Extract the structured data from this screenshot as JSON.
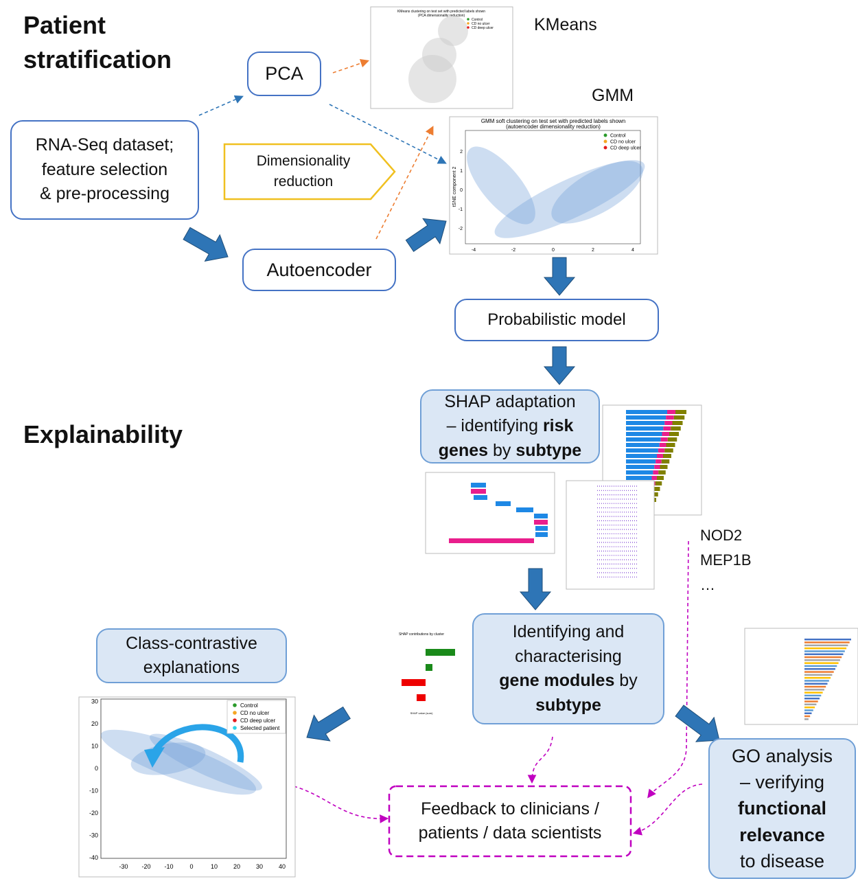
{
  "headings": {
    "stratification": [
      "Patient",
      "stratification"
    ],
    "explainability": "Explainability"
  },
  "nodes": [
    {
      "lines": [
        [
          {
            "t": "PCA"
          }
        ]
      ]
    },
    {
      "lines": [
        [
          {
            "t": "RNA-Seq dataset;"
          }
        ],
        [
          {
            "t": "feature selection"
          }
        ],
        [
          {
            "t": "& pre-processing"
          }
        ]
      ]
    },
    {
      "lines": [
        [
          {
            "t": "Dimensionality"
          }
        ],
        [
          {
            "t": "reduction"
          }
        ]
      ]
    },
    {
      "lines": [
        [
          {
            "t": "Autoencoder"
          }
        ]
      ]
    },
    {
      "lines": [
        [
          {
            "t": "Probabilistic model"
          }
        ]
      ]
    },
    {
      "lines": [
        [
          {
            "t": "SHAP adaptation"
          }
        ],
        [
          {
            "t": "– identifying "
          },
          {
            "t": "risk",
            "b": true
          }
        ],
        [
          {
            "t": "genes",
            "b": true
          },
          {
            "t": " by "
          },
          {
            "t": "subtype",
            "b": true
          }
        ]
      ]
    },
    {
      "lines": [
        [
          {
            "t": "Identifying and"
          }
        ],
        [
          {
            "t": "characterising"
          }
        ],
        [
          {
            "t": "gene modules",
            "b": true
          },
          {
            "t": " by"
          }
        ],
        [
          {
            "t": "subtype",
            "b": true
          }
        ]
      ]
    },
    {
      "lines": [
        [
          {
            "t": "Class-contrastive"
          }
        ],
        [
          {
            "t": "explanations"
          }
        ]
      ]
    },
    {
      "lines": [
        [
          {
            "t": "GO analysis"
          }
        ],
        [
          {
            "t": "– verifying"
          }
        ],
        [
          {
            "t": "functional",
            "b": true
          }
        ],
        [
          {
            "t": "relevance",
            "b": true
          }
        ],
        [
          {
            "t": "to disease"
          }
        ]
      ]
    },
    {
      "lines": [
        [
          {
            "t": "Feedback to clinicians /"
          }
        ],
        [
          {
            "t": "patients / data scientists"
          }
        ]
      ]
    }
  ],
  "labels": {
    "kmeans": "KMeans",
    "gmm": "GMM",
    "genes": [
      "NOD2",
      "MEP1B",
      "…"
    ]
  },
  "kmeans_plot": {
    "title": [
      "KMeans clustering on test set with predicted labels shown",
      "(PCA dimensionality reduction)"
    ],
    "legend": [
      "Control",
      "CD no ulcer",
      "CD deep ulcer"
    ]
  },
  "gmm_plot": {
    "title": [
      "GMM soft clustering on test set with predicted labels shown",
      "(autoencoder dimensionality reduction)"
    ],
    "legend": [
      "Control",
      "CD no ulcer",
      "CD deep ulcer"
    ],
    "ylabel": "tSNE component 2",
    "xticks": [
      -4,
      -2,
      0,
      2,
      4
    ],
    "yticks": [
      2,
      1,
      0,
      -1,
      -2
    ]
  },
  "contrast_plot": {
    "legend": [
      "Control",
      "CD no ulcer",
      "CD deep ulcer",
      "Selected patient"
    ],
    "xticks": [
      -30,
      -20,
      -10,
      0,
      10,
      20,
      30,
      40
    ],
    "yticks": [
      30,
      20,
      10,
      0,
      -10,
      -20,
      -30,
      -40
    ]
  },
  "shap_cluster_plot": {
    "title": "SHAP contributions by cluster",
    "xlabel": "SHAP value (sum)"
  }
}
